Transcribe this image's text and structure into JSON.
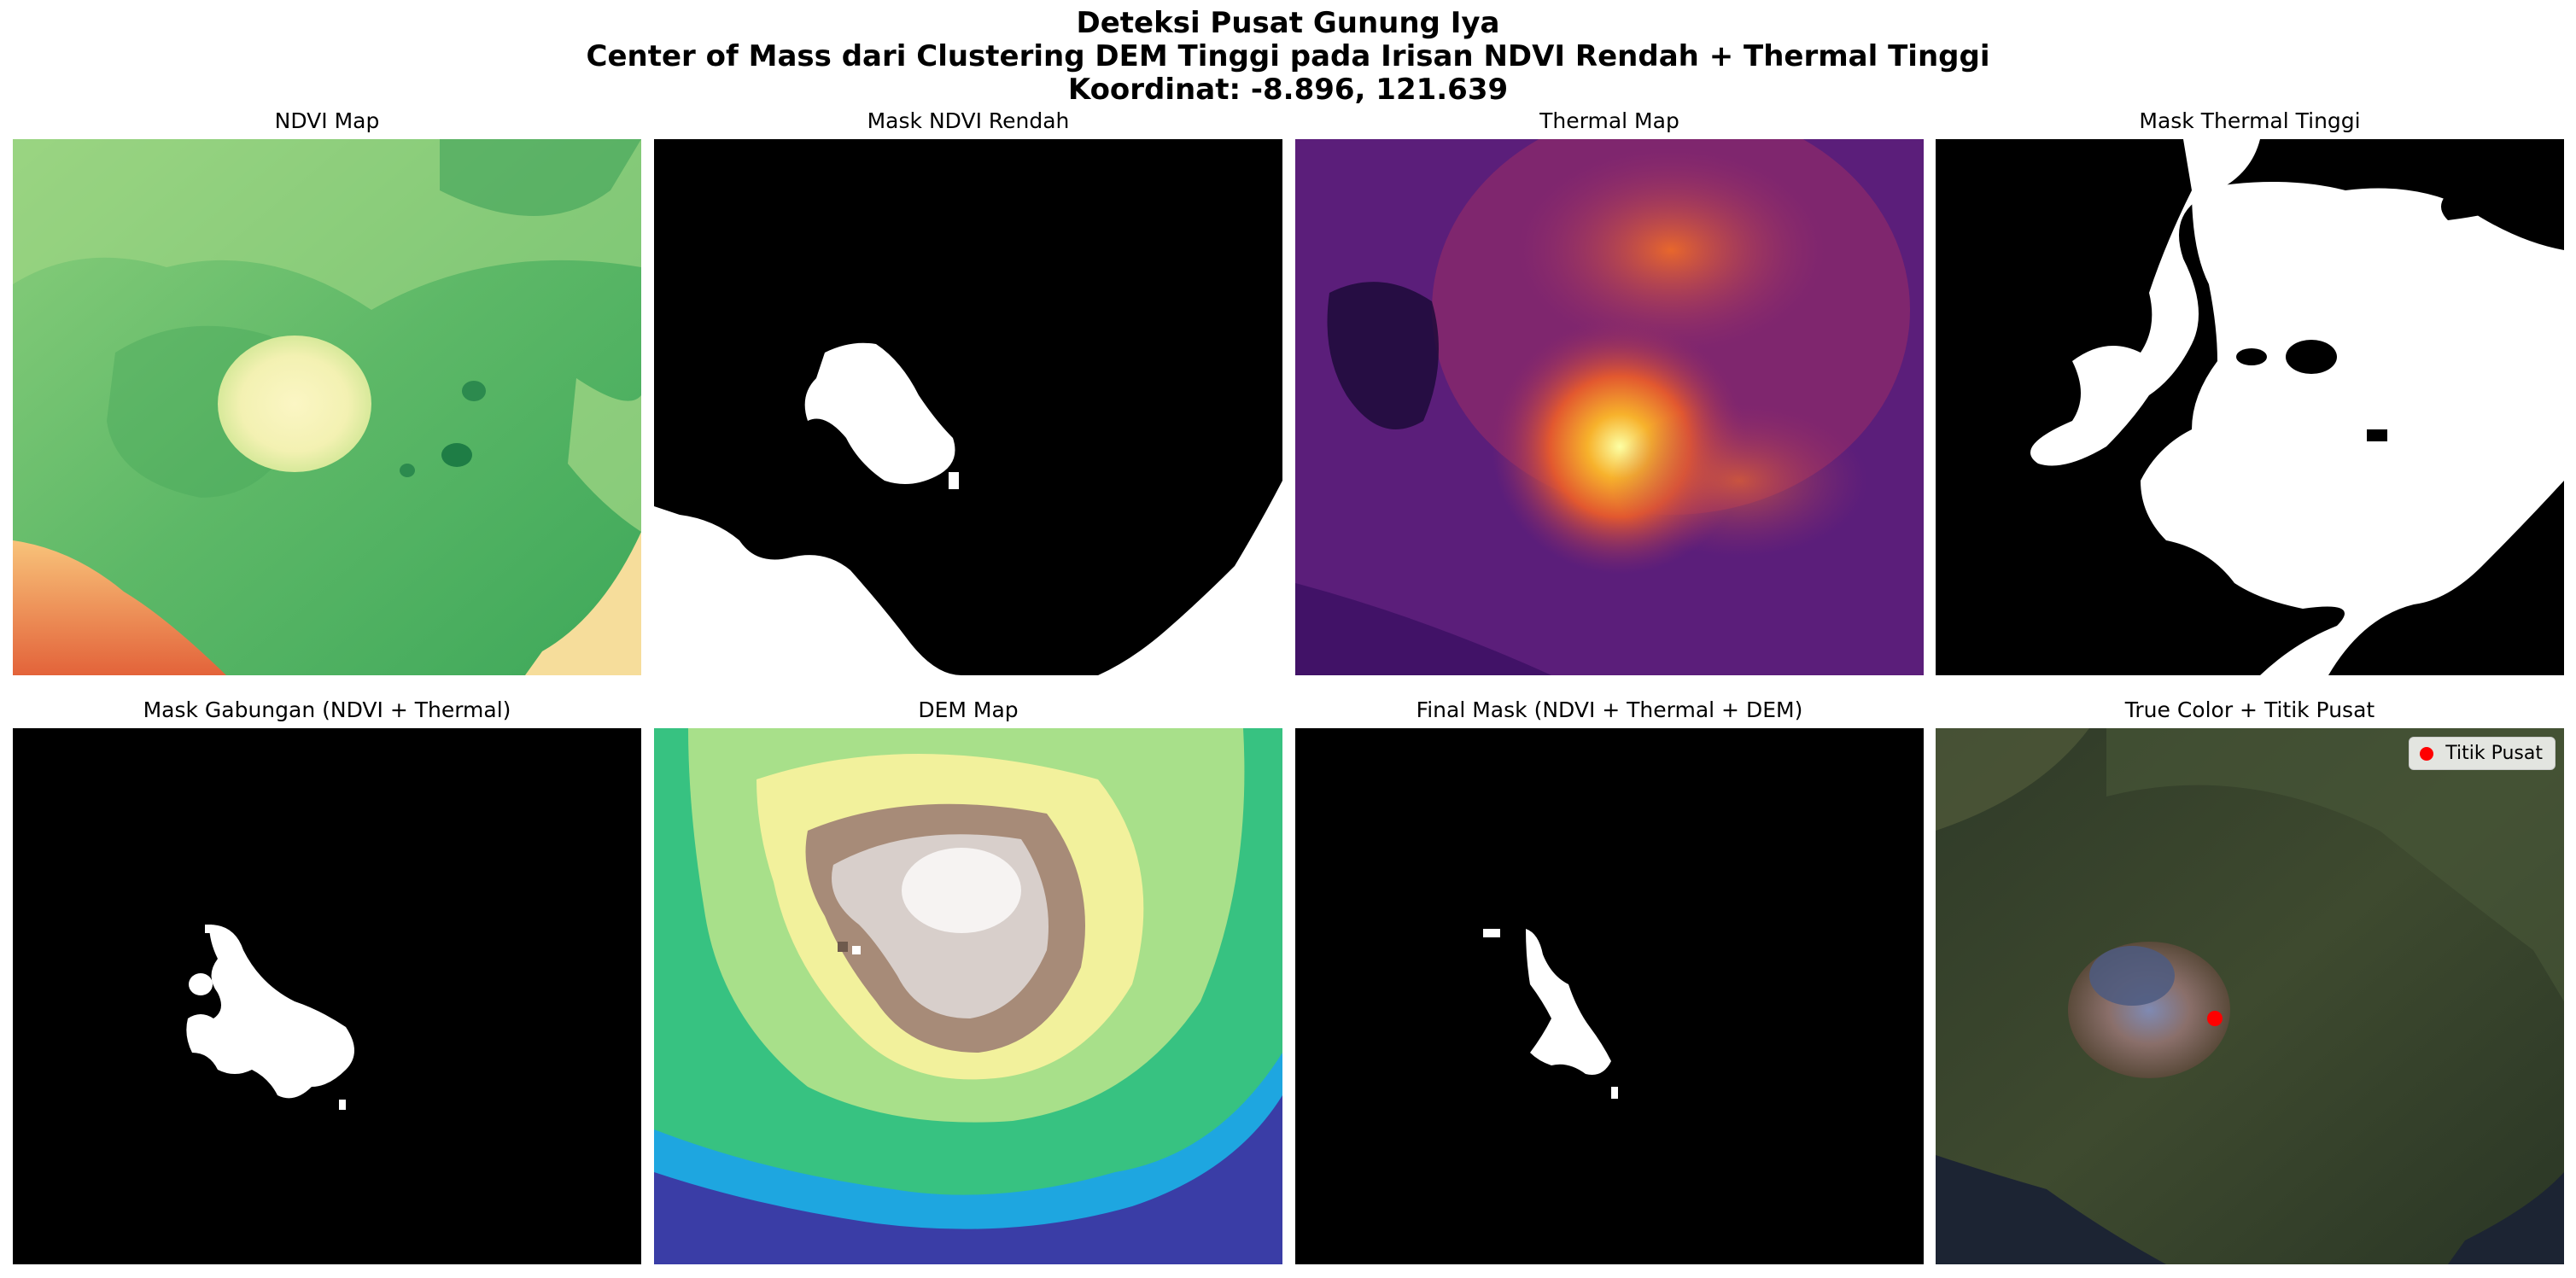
{
  "figure": {
    "title_lines": [
      "Deteksi Pusat Gunung Iya",
      "Center of Mass dari Clustering DEM Tinggi pada Irisan NDVI Rendah + Thermal Tinggi",
      "Koordinat: -8.896, 121.639"
    ]
  },
  "panels": [
    {
      "title": "NDVI Map",
      "colormap": "RdYlGn"
    },
    {
      "title": "Mask NDVI Rendah",
      "colormap": "gray"
    },
    {
      "title": "Thermal Map",
      "colormap": "inferno"
    },
    {
      "title": "Mask Thermal Tinggi",
      "colormap": "gray"
    },
    {
      "title": "Mask Gabungan (NDVI + Thermal)",
      "colormap": "gray"
    },
    {
      "title": "DEM Map",
      "colormap": "terrain"
    },
    {
      "title": "Final Mask (NDVI + Thermal + DEM)",
      "colormap": "gray"
    },
    {
      "title": "True Color + Titik Pusat",
      "colormap": "rgb"
    }
  ],
  "chart_data": {
    "type": "heatmap",
    "title": "Deteksi Pusat Gunung Iya",
    "subtitle": "Center of Mass dari Clustering DEM Tinggi pada Irisan NDVI Rendah + Thermal Tinggi",
    "center_point": {
      "lat": -8.896,
      "lon": 121.639
    },
    "legend": {
      "label": "Titik Pusat",
      "placement": "top-right",
      "color": "#ff0000"
    },
    "axes_visible": false
  },
  "colors": {
    "mask_on": "#ffffff",
    "mask_off": "#000000",
    "marker": "#ff0000"
  }
}
